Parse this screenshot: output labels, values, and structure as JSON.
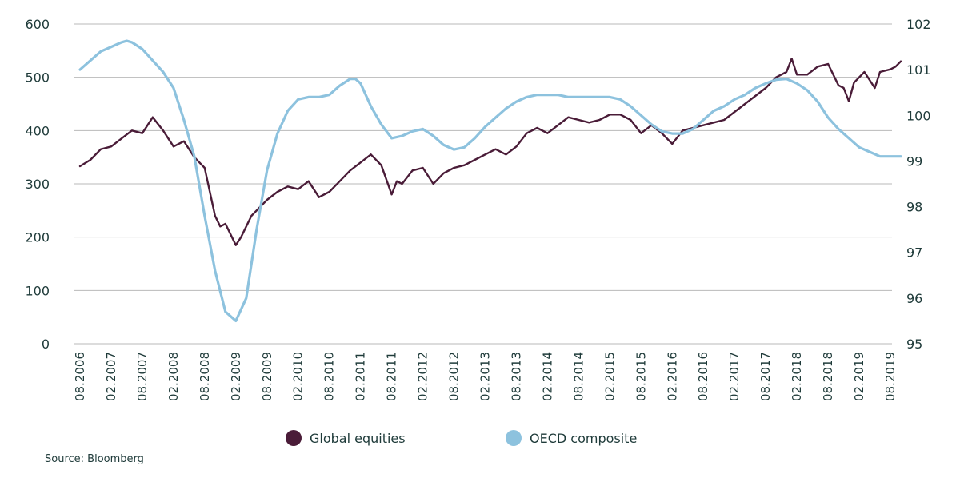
{
  "chart_data": {
    "type": "line",
    "y_left": {
      "ticks": [
        0,
        100,
        200,
        300,
        400,
        500,
        600
      ],
      "ylim": [
        0,
        600
      ]
    },
    "y_right": {
      "ticks": [
        95,
        96,
        97,
        98,
        99,
        100,
        101,
        102
      ],
      "ylim": [
        95,
        102
      ]
    },
    "x_tick_labels": [
      "08.2006",
      "02.2007",
      "08.2007",
      "02.2008",
      "08.2008",
      "02.2009",
      "08.2009",
      "02.2010",
      "08.2010",
      "02.2011",
      "08.2011",
      "02.2012",
      "08.2012",
      "02.2013",
      "08.2013",
      "02.2014",
      "08.2014",
      "02.2015",
      "08.2015",
      "02.2016",
      "08.2016",
      "02.2017",
      "08.2017",
      "02.2018",
      "08.2018",
      "02.2019",
      "08.2019"
    ],
    "grid": "horizontal",
    "legend_position": "bottom",
    "series": [
      {
        "name": "Global equities",
        "axis": "left",
        "color": "#4a1c38",
        "points": [
          [
            "08.2006",
            333
          ],
          [
            "10.2006",
            345
          ],
          [
            "12.2006",
            365
          ],
          [
            "02.2007",
            370
          ],
          [
            "04.2007",
            385
          ],
          [
            "06.2007",
            400
          ],
          [
            "08.2007",
            395
          ],
          [
            "10.2007",
            425
          ],
          [
            "12.2007",
            400
          ],
          [
            "02.2008",
            370
          ],
          [
            "04.2008",
            380
          ],
          [
            "06.2008",
            350
          ],
          [
            "08.2008",
            330
          ],
          [
            "10.2008",
            240
          ],
          [
            "11.2008",
            220
          ],
          [
            "12.2008",
            225
          ],
          [
            "02.2009",
            185
          ],
          [
            "03.2009",
            200
          ],
          [
            "05.2009",
            240
          ],
          [
            "07.2009",
            260
          ],
          [
            "08.2009",
            270
          ],
          [
            "10.2009",
            285
          ],
          [
            "12.2009",
            295
          ],
          [
            "02.2010",
            290
          ],
          [
            "04.2010",
            305
          ],
          [
            "06.2010",
            275
          ],
          [
            "08.2010",
            285
          ],
          [
            "10.2010",
            305
          ],
          [
            "12.2010",
            325
          ],
          [
            "02.2011",
            340
          ],
          [
            "04.2011",
            355
          ],
          [
            "06.2011",
            335
          ],
          [
            "08.2011",
            280
          ],
          [
            "09.2011",
            305
          ],
          [
            "10.2011",
            300
          ],
          [
            "12.2011",
            325
          ],
          [
            "02.2012",
            330
          ],
          [
            "04.2012",
            300
          ],
          [
            "06.2012",
            320
          ],
          [
            "08.2012",
            330
          ],
          [
            "10.2012",
            335
          ],
          [
            "12.2012",
            345
          ],
          [
            "02.2013",
            355
          ],
          [
            "04.2013",
            365
          ],
          [
            "06.2013",
            355
          ],
          [
            "08.2013",
            370
          ],
          [
            "10.2013",
            395
          ],
          [
            "12.2013",
            405
          ],
          [
            "02.2014",
            395
          ],
          [
            "04.2014",
            410
          ],
          [
            "06.2014",
            425
          ],
          [
            "08.2014",
            420
          ],
          [
            "10.2014",
            415
          ],
          [
            "12.2014",
            420
          ],
          [
            "02.2015",
            430
          ],
          [
            "04.2015",
            430
          ],
          [
            "06.2015",
            420
          ],
          [
            "08.2015",
            395
          ],
          [
            "10.2015",
            410
          ],
          [
            "12.2015",
            395
          ],
          [
            "02.2016",
            375
          ],
          [
            "04.2016",
            400
          ],
          [
            "06.2016",
            405
          ],
          [
            "08.2016",
            410
          ],
          [
            "10.2016",
            415
          ],
          [
            "12.2016",
            420
          ],
          [
            "02.2017",
            435
          ],
          [
            "04.2017",
            450
          ],
          [
            "06.2017",
            465
          ],
          [
            "08.2017",
            480
          ],
          [
            "10.2017",
            500
          ],
          [
            "12.2017",
            510
          ],
          [
            "01.2018",
            535
          ],
          [
            "02.2018",
            505
          ],
          [
            "04.2018",
            505
          ],
          [
            "06.2018",
            520
          ],
          [
            "08.2018",
            525
          ],
          [
            "10.2018",
            485
          ],
          [
            "11.2018",
            480
          ],
          [
            "12.2018",
            455
          ],
          [
            "01.2019",
            490
          ],
          [
            "03.2019",
            510
          ],
          [
            "05.2019",
            480
          ],
          [
            "06.2019",
            510
          ],
          [
            "08.2019",
            515
          ],
          [
            "09.2019",
            520
          ],
          [
            "10.2019",
            530
          ]
        ]
      },
      {
        "name": "OECD composite",
        "axis": "right",
        "color": "#8dc2de",
        "points": [
          [
            "08.2006",
            101.0
          ],
          [
            "10.2006",
            101.2
          ],
          [
            "12.2006",
            101.4
          ],
          [
            "02.2007",
            101.5
          ],
          [
            "04.2007",
            101.6
          ],
          [
            "05.2007",
            101.63
          ],
          [
            "06.2007",
            101.6
          ],
          [
            "08.2007",
            101.45
          ],
          [
            "10.2007",
            101.2
          ],
          [
            "12.2007",
            100.95
          ],
          [
            "02.2008",
            100.6
          ],
          [
            "04.2008",
            99.9
          ],
          [
            "06.2008",
            99.1
          ],
          [
            "08.2008",
            97.8
          ],
          [
            "10.2008",
            96.6
          ],
          [
            "12.2008",
            95.7
          ],
          [
            "02.2009",
            95.5
          ],
          [
            "04.2009",
            96.0
          ],
          [
            "06.2009",
            97.5
          ],
          [
            "08.2009",
            98.8
          ],
          [
            "10.2009",
            99.6
          ],
          [
            "12.2009",
            100.1
          ],
          [
            "02.2010",
            100.35
          ],
          [
            "04.2010",
            100.4
          ],
          [
            "06.2010",
            100.4
          ],
          [
            "08.2010",
            100.45
          ],
          [
            "10.2010",
            100.65
          ],
          [
            "12.2010",
            100.8
          ],
          [
            "01.2011",
            100.8
          ],
          [
            "02.2011",
            100.7
          ],
          [
            "04.2011",
            100.2
          ],
          [
            "06.2011",
            99.8
          ],
          [
            "08.2011",
            99.5
          ],
          [
            "10.2011",
            99.55
          ],
          [
            "12.2011",
            99.65
          ],
          [
            "02.2012",
            99.7
          ],
          [
            "04.2012",
            99.55
          ],
          [
            "06.2012",
            99.35
          ],
          [
            "08.2012",
            99.25
          ],
          [
            "10.2012",
            99.3
          ],
          [
            "12.2012",
            99.5
          ],
          [
            "02.2013",
            99.75
          ],
          [
            "04.2013",
            99.95
          ],
          [
            "06.2013",
            100.15
          ],
          [
            "08.2013",
            100.3
          ],
          [
            "10.2013",
            100.4
          ],
          [
            "12.2013",
            100.45
          ],
          [
            "02.2014",
            100.45
          ],
          [
            "04.2014",
            100.45
          ],
          [
            "06.2014",
            100.4
          ],
          [
            "08.2014",
            100.4
          ],
          [
            "10.2014",
            100.4
          ],
          [
            "12.2014",
            100.4
          ],
          [
            "02.2015",
            100.4
          ],
          [
            "04.2015",
            100.35
          ],
          [
            "06.2015",
            100.2
          ],
          [
            "08.2015",
            100.0
          ],
          [
            "10.2015",
            99.8
          ],
          [
            "12.2015",
            99.65
          ],
          [
            "02.2016",
            99.6
          ],
          [
            "04.2016",
            99.6
          ],
          [
            "06.2016",
            99.7
          ],
          [
            "08.2016",
            99.9
          ],
          [
            "10.2016",
            100.1
          ],
          [
            "12.2016",
            100.2
          ],
          [
            "02.2017",
            100.35
          ],
          [
            "04.2017",
            100.45
          ],
          [
            "06.2017",
            100.6
          ],
          [
            "08.2017",
            100.7
          ],
          [
            "10.2017",
            100.78
          ],
          [
            "12.2017",
            100.8
          ],
          [
            "02.2018",
            100.7
          ],
          [
            "04.2018",
            100.55
          ],
          [
            "06.2018",
            100.3
          ],
          [
            "08.2018",
            99.95
          ],
          [
            "10.2018",
            99.7
          ],
          [
            "12.2018",
            99.5
          ],
          [
            "02.2019",
            99.3
          ],
          [
            "04.2019",
            99.2
          ],
          [
            "06.2019",
            99.1
          ],
          [
            "08.2019",
            99.1
          ],
          [
            "10.2019",
            99.1
          ]
        ]
      }
    ]
  },
  "legend": {
    "equities_label": "Global equities",
    "oecd_label": "OECD composite"
  },
  "source": "Source: Bloomberg"
}
